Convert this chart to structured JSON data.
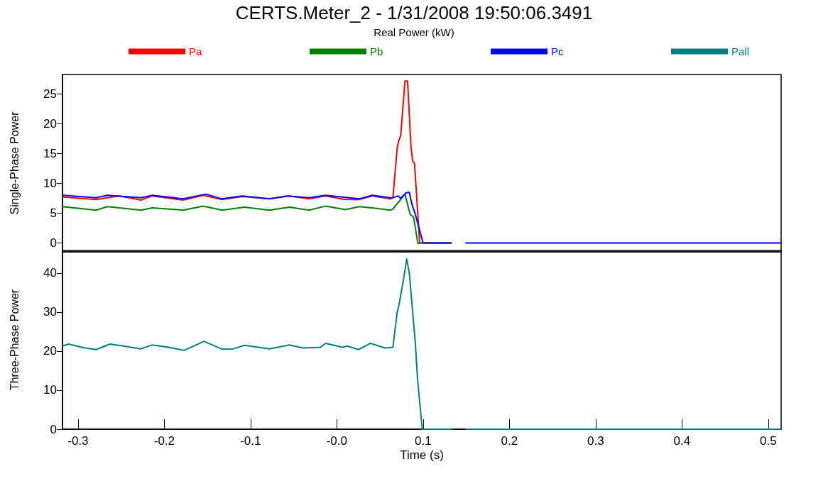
{
  "chart_data": [
    {
      "type": "line",
      "title": "CERTS.Meter_2 - 1/31/2008 19:50:06.3491",
      "subtitle": "Real Power (kW)",
      "ylabel": "Single-Phase Power",
      "xlim": [
        -0.318,
        0.515
      ],
      "ylim": [
        -1.5,
        28.3
      ],
      "yticks": [
        0,
        5,
        10,
        15,
        20,
        25
      ],
      "tick_labels": "y",
      "grid": false,
      "legend": "top",
      "series": [
        {
          "name": "Pa",
          "color": "#ff0000",
          "x": [
            -0.318,
            -0.279,
            -0.253,
            -0.227,
            -0.214,
            -0.178,
            -0.155,
            -0.133,
            -0.11,
            -0.078,
            -0.055,
            -0.032,
            -0.013,
            0.01,
            0.026,
            0.041,
            0.062,
            0.065,
            0.07,
            0.072,
            0.074,
            0.079,
            0.082,
            0.086,
            0.088,
            0.09,
            0.096,
            0.133
          ],
          "values": [
            7.7,
            7.3,
            7.9,
            7.2,
            7.9,
            7.2,
            8.0,
            7.3,
            7.8,
            7.4,
            7.9,
            7.4,
            7.9,
            7.3,
            7.3,
            7.9,
            7.4,
            7.6,
            16,
            17.3,
            18,
            27.2,
            27.2,
            16,
            13.7,
            13.4,
            0,
            0
          ]
        },
        {
          "name": "Pb",
          "color": "#008000",
          "x": [
            -0.318,
            -0.279,
            -0.266,
            -0.227,
            -0.214,
            -0.178,
            -0.155,
            -0.133,
            -0.107,
            -0.078,
            -0.055,
            -0.032,
            -0.013,
            0.01,
            0.026,
            0.041,
            0.062,
            0.065,
            0.069,
            0.079,
            0.085,
            0.089,
            0.094,
            0.098,
            0.133
          ],
          "values": [
            6.1,
            5.5,
            6.1,
            5.5,
            5.9,
            5.5,
            6.2,
            5.5,
            6.0,
            5.5,
            6.0,
            5.5,
            6.2,
            5.6,
            6.1,
            5.9,
            5.5,
            5.7,
            6.4,
            8.2,
            4.8,
            4.3,
            -0.1,
            0,
            0
          ]
        },
        {
          "name": "Pc",
          "color": "#0000ff",
          "x": [
            -0.318,
            -0.279,
            -0.266,
            -0.227,
            -0.214,
            -0.178,
            -0.152,
            -0.133,
            -0.11,
            -0.078,
            -0.058,
            -0.032,
            -0.013,
            0.026,
            0.041,
            0.062,
            0.065,
            0.071,
            0.074,
            0.08,
            0.084,
            0.087,
            0.091,
            0.1,
            0.133,
            0.14,
            0.149,
            0.515
          ],
          "values": [
            8.0,
            7.6,
            8.0,
            7.6,
            8.0,
            7.4,
            8.2,
            7.4,
            7.9,
            7.4,
            7.9,
            7.6,
            8.0,
            7.4,
            8.0,
            7.6,
            7.6,
            7.9,
            7.5,
            8.4,
            8.5,
            6.5,
            4.8,
            0,
            0,
            null,
            0,
            0
          ]
        }
      ]
    },
    {
      "type": "line",
      "xlabel": "Time (s)",
      "ylabel": "Three-Phase Power",
      "xlim": [
        -0.318,
        0.515
      ],
      "xticks": [
        -0.3,
        -0.2,
        -0.1,
        {
          "value": 0,
          "label": "-0.0"
        },
        0.1,
        0.2,
        0.3,
        0.4,
        0.5
      ],
      "ylim": [
        0,
        45.8
      ],
      "yticks": [
        0,
        10,
        20,
        30,
        40
      ],
      "grid": false,
      "legend": "top",
      "series": [
        {
          "name": "Pall",
          "color": "#008080",
          "x": [
            -0.318,
            -0.311,
            -0.292,
            -0.279,
            -0.263,
            -0.25,
            -0.227,
            -0.214,
            -0.195,
            -0.177,
            -0.154,
            -0.133,
            -0.12,
            -0.107,
            -0.078,
            -0.055,
            -0.039,
            -0.019,
            -0.013,
            0.007,
            0.012,
            0.025,
            0.039,
            0.056,
            0.065,
            0.07,
            0.072,
            0.077,
            0.081,
            0.084,
            0.091,
            0.0935,
            0.099,
            0.133,
            0.14,
            0.149,
            0.515
          ],
          "values": [
            21.3,
            21.8,
            20.8,
            20.4,
            21.8,
            21.4,
            20.6,
            21.6,
            21.0,
            20.2,
            22.5,
            20.5,
            20.6,
            21.5,
            20.6,
            21.6,
            20.8,
            21.0,
            22.0,
            21.0,
            21.3,
            20.4,
            22.0,
            20.8,
            21.0,
            30,
            31.8,
            38,
            43.6,
            40,
            22,
            13,
            0,
            0,
            null,
            0,
            0
          ]
        }
      ]
    }
  ]
}
